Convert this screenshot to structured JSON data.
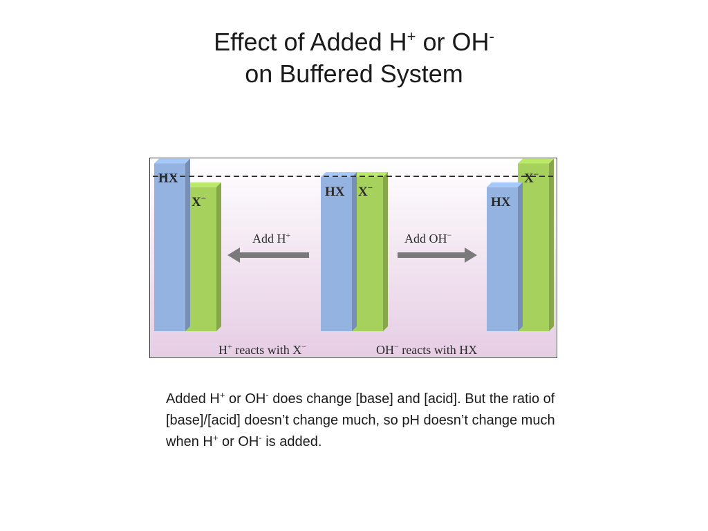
{
  "title": {
    "line1_pre": "Effect of Added H",
    "line1_sup1": "+",
    "line1_mid": " or OH",
    "line1_sup2": "-",
    "line2": "on Buffered System"
  },
  "diagram": {
    "colors": {
      "background": "#ead7e9",
      "hx_bar": "#95b3e0",
      "x_bar": "#a6d15c",
      "arrow": "#7a7a7a"
    },
    "states": [
      {
        "id": "add-h",
        "hx_label": "HX",
        "x_label": "X",
        "x_sup": "−",
        "hx_level": 0.99,
        "x_level": 0.85
      },
      {
        "id": "initial",
        "hx_label": "HX",
        "x_label": "X",
        "x_sup": "−",
        "hx_level": 0.91,
        "x_level": 0.91
      },
      {
        "id": "add-oh",
        "hx_label": "HX",
        "x_label": "X",
        "x_sup": "−",
        "hx_level": 0.85,
        "x_level": 0.99
      }
    ],
    "arrow_left": {
      "text": "Add H",
      "sup": "+"
    },
    "arrow_right": {
      "text": "Add OH",
      "sup": "−"
    },
    "bottom_left": {
      "pre": "H",
      "sup": "+",
      "post": " reacts with X",
      "sup2": "−"
    },
    "bottom_right": {
      "pre": "OH",
      "sup": "−",
      "post": " reacts with HX"
    }
  },
  "caption": {
    "p1": "Added H",
    "sup1": "+",
    "p2": " or OH",
    "sup2": "-",
    "p3": " does change [base] and [acid]. But the ratio of [base]/[acid] doesn’t change much, so pH doesn’t change much when H",
    "sup3": "+",
    "p4": " or OH",
    "sup4": "-",
    "p5": " is added."
  }
}
